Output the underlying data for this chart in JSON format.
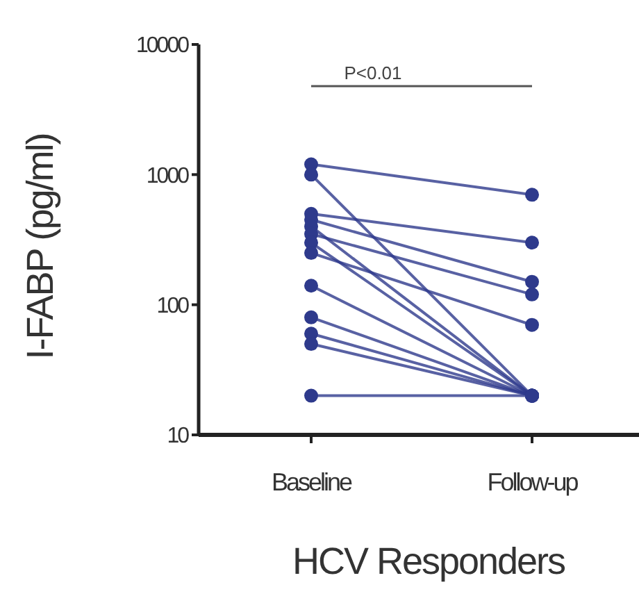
{
  "chart_data": {
    "type": "line",
    "xlabel": "HCV Responders",
    "ylabel": "I-FABP (pg/ml)",
    "categories": [
      "Baseline",
      "Follow-up"
    ],
    "log": "y",
    "ylim": [
      10,
      10000
    ],
    "yticks": [
      10,
      100,
      1000,
      10000
    ],
    "marker": "circle",
    "grid": false,
    "annotations": [
      "P<0.01"
    ],
    "series": [
      {
        "color": "#2e3a8c",
        "values": [
          1200,
          700
        ]
      },
      {
        "color": "#2e3a8c",
        "values": [
          1000,
          20
        ]
      },
      {
        "color": "#2e3a8c",
        "values": [
          500,
          300
        ]
      },
      {
        "color": "#2e3a8c",
        "values": [
          450,
          150
        ]
      },
      {
        "color": "#2e3a8c",
        "values": [
          400,
          20
        ]
      },
      {
        "color": "#2e3a8c",
        "values": [
          350,
          120
        ]
      },
      {
        "color": "#2e3a8c",
        "values": [
          300,
          20
        ]
      },
      {
        "color": "#2e3a8c",
        "values": [
          250,
          70
        ]
      },
      {
        "color": "#2e3a8c",
        "values": [
          140,
          20
        ]
      },
      {
        "color": "#2e3a8c",
        "values": [
          80,
          20
        ]
      },
      {
        "color": "#2e3a8c",
        "values": [
          60,
          20
        ]
      },
      {
        "color": "#2e3a8c",
        "values": [
          50,
          20
        ]
      },
      {
        "color": "#2e3a8c",
        "values": [
          20,
          20
        ]
      }
    ]
  }
}
